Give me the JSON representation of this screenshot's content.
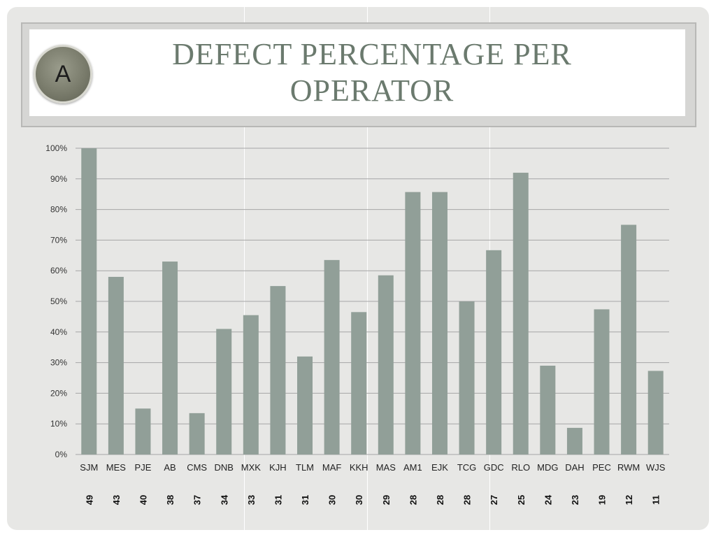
{
  "slide": {
    "title": "DEFECT PERCENTAGE PER OPERATOR",
    "badge": "A"
  },
  "colors": {
    "bar": "#919f98",
    "grid": "#a6a6a6",
    "background": "#e7e7e5",
    "title": "#6b7a6e"
  },
  "chart_data": {
    "type": "bar",
    "title": "DEFECT PERCENTAGE PER OPERATOR",
    "xlabel": "",
    "ylabel": "",
    "ylim": [
      0,
      100
    ],
    "y_ticks": [
      "0%",
      "10%",
      "20%",
      "30%",
      "40%",
      "50%",
      "60%",
      "70%",
      "80%",
      "90%",
      "100%"
    ],
    "grid": true,
    "categories": [
      "SJM",
      "MES",
      "PJE",
      "AB",
      "CMS",
      "DNB",
      "MXK",
      "KJH",
      "TLM",
      "MAF",
      "KKH",
      "MAS",
      "AM1",
      "EJK",
      "TCG",
      "GDC",
      "RLO",
      "MDG",
      "DAH",
      "PEC",
      "RWM",
      "WJS"
    ],
    "values": [
      100,
      58,
      15,
      63,
      13.5,
      41,
      45.5,
      55,
      32,
      63.5,
      46.5,
      58.5,
      85.7,
      85.7,
      50,
      66.7,
      92,
      29,
      8.7,
      47.4,
      75,
      27.3
    ],
    "counts": [
      49,
      43,
      40,
      38,
      37,
      34,
      33,
      31,
      31,
      30,
      30,
      29,
      28,
      28,
      28,
      27,
      25,
      24,
      23,
      19,
      12,
      11
    ]
  }
}
